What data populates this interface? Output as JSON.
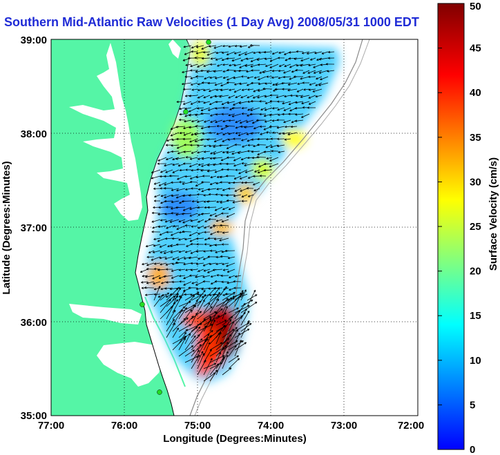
{
  "title": "Southern Mid-Atlantic Raw Velocities (1 Day Avg) 2008/05/31 1000 EDT",
  "map": {
    "xlabel": "Longitude (Degrees:Minutes)",
    "ylabel": "Latitude (Degrees:Minutes)",
    "x_ticks": [
      "77:00",
      "76:00",
      "75:00",
      "74:00",
      "73:00",
      "72:00"
    ],
    "y_ticks": [
      "39:00",
      "38:00",
      "37:00",
      "36:00",
      "35:00"
    ],
    "lon_range": [
      -77,
      -72
    ],
    "lat_range": [
      35,
      39
    ],
    "grid": "dotted",
    "land_color": "#55f5a6",
    "water_color": "#ffffff",
    "vector_color": "#000000",
    "station_marker_color": "#22dd22"
  },
  "colorbar": {
    "label": "Surface Velocity (cm/s)",
    "ticks": [
      "0",
      "5",
      "10",
      "15",
      "20",
      "25",
      "30",
      "35",
      "40",
      "45",
      "50"
    ],
    "range": [
      0,
      50
    ],
    "colors": [
      "#0000ff",
      "#0080ff",
      "#00ffff",
      "#80ff80",
      "#ffff00",
      "#ff8000",
      "#ff0000",
      "#800000"
    ]
  }
}
